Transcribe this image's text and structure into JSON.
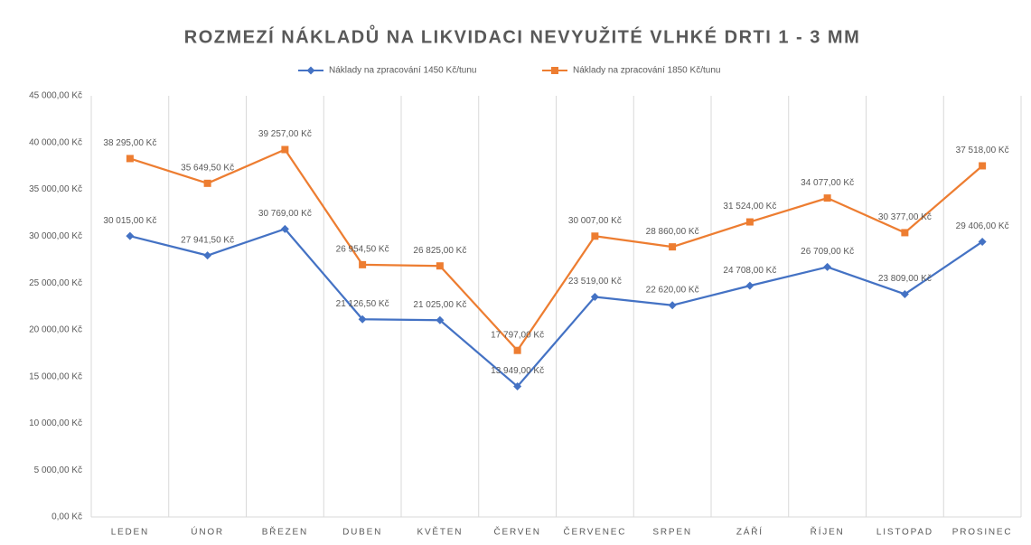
{
  "chart_data": {
    "type": "line",
    "title": "ROZMEZÍ NÁKLADŮ NA LIKVIDACI NEVYUŽITÉ VLHKÉ DRTI 1 - 3 MM",
    "categories": [
      "LEDEN",
      "ÚNOR",
      "BŘEZEN",
      "DUBEN",
      "KVĚTEN",
      "ČERVEN",
      "ČERVENEC",
      "SRPEN",
      "ZÁŘÍ",
      "ŘÍJEN",
      "LISTOPAD",
      "PROSINEC"
    ],
    "series": [
      {
        "name": "Náklady na zpracování 1450 Kč/tunu",
        "color": "#4472c4",
        "marker": "diamond",
        "values": [
          30015,
          27941.5,
          30769,
          21126.5,
          21025,
          13949,
          23519,
          22620,
          24708,
          26709,
          23809,
          29406
        ],
        "value_labels": [
          "30 015,00 Kč",
          "27 941,50 Kč",
          "30 769,00 Kč",
          "21 126,50 Kč",
          "21 025,00 Kč",
          "13 949,00 Kč",
          "23 519,00 Kč",
          "22 620,00 Kč",
          "24 708,00 Kč",
          "26 709,00 Kč",
          "23 809,00 Kč",
          "29 406,00 Kč"
        ]
      },
      {
        "name": "Náklady na zpracování 1850 Kč/tunu",
        "color": "#ed7d31",
        "marker": "square",
        "values": [
          38295,
          35649.5,
          39257,
          26954.5,
          26825,
          17797,
          30007,
          28860,
          31524,
          34077,
          30377,
          37518
        ],
        "value_labels": [
          "38 295,00 Kč",
          "35 649,50 Kč",
          "39 257,00 Kč",
          "26 954,50 Kč",
          "26 825,00 Kč",
          "17 797,00 Kč",
          "30 007,00 Kč",
          "28 860,00 Kč",
          "31 524,00 Kč",
          "34 077,00 Kč",
          "30 377,00 Kč",
          "37 518,00 Kč"
        ]
      }
    ],
    "ylim": [
      0,
      45000
    ],
    "yticks": [
      {
        "value": 0,
        "label": "0,00 Kč"
      },
      {
        "value": 5000,
        "label": "5 000,00 Kč"
      },
      {
        "value": 10000,
        "label": "10 000,00 Kč"
      },
      {
        "value": 15000,
        "label": "15 000,00 Kč"
      },
      {
        "value": 20000,
        "label": "20 000,00 Kč"
      },
      {
        "value": 25000,
        "label": "25 000,00 Kč"
      },
      {
        "value": 30000,
        "label": "30 000,00 Kč"
      },
      {
        "value": 35000,
        "label": "35 000,00 Kč"
      },
      {
        "value": 40000,
        "label": "40 000,00 Kč"
      },
      {
        "value": 45000,
        "label": "45 000,00 Kč"
      }
    ],
    "legend": "top"
  }
}
